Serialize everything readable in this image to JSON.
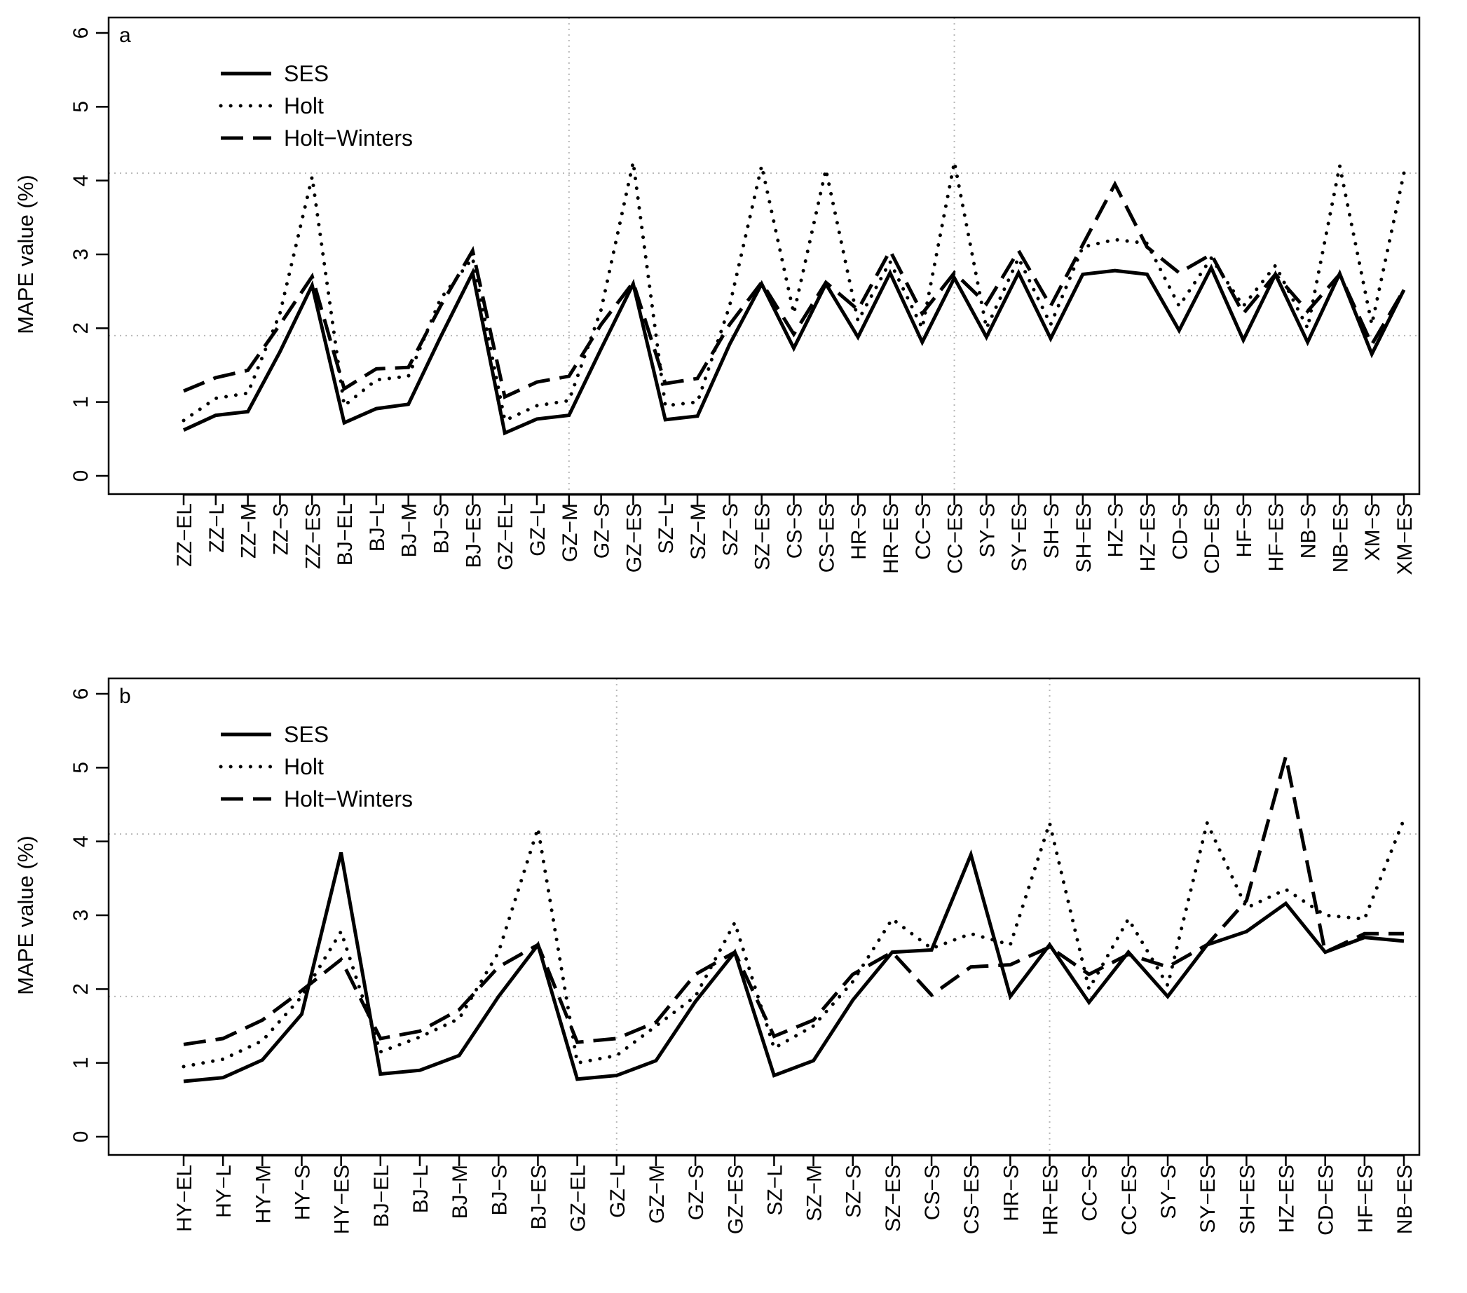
{
  "chart_data": [
    {
      "type": "line",
      "panel_label": "a",
      "ylabel": "MAPE value (%)",
      "xlabel": "",
      "ylim": [
        0,
        6
      ],
      "yticks": [
        0,
        1,
        2,
        3,
        4,
        5,
        6
      ],
      "grid": "dotted lines at y=1.9, y=4.1 and after categories 12 and 24",
      "legend_position": "top-left",
      "categories": [
        "ZZ−EL",
        "ZZ−L",
        "ZZ−M",
        "ZZ−S",
        "ZZ−ES",
        "BJ−EL",
        "BJ−L",
        "BJ−M",
        "BJ−S",
        "BJ−ES",
        "GZ−EL",
        "GZ−L",
        "GZ−M",
        "GZ−S",
        "GZ−ES",
        "SZ−L",
        "SZ−M",
        "SZ−S",
        "SZ−ES",
        "CS−S",
        "CS−ES",
        "HR−S",
        "HR−ES",
        "CC−S",
        "CC−ES",
        "SY−S",
        "SY−ES",
        "SH−S",
        "SH−ES",
        "HZ−S",
        "HZ−ES",
        "CD−S",
        "CD−ES",
        "HF−S",
        "HF−ES",
        "NB−S",
        "NB−ES",
        "XM−S",
        "XM−ES"
      ],
      "series": [
        {
          "name": "SES",
          "style": "solid",
          "values": [
            0.62,
            0.82,
            0.87,
            1.68,
            2.58,
            0.72,
            0.91,
            0.97,
            1.88,
            2.75,
            0.58,
            0.77,
            0.82,
            1.72,
            2.6,
            0.76,
            0.81,
            1.78,
            2.6,
            1.73,
            2.6,
            1.88,
            2.75,
            1.81,
            2.68,
            1.88,
            2.75,
            1.86,
            2.73,
            2.78,
            2.73,
            1.97,
            2.82,
            1.84,
            2.73,
            1.81,
            2.74,
            1.65,
            2.52
          ]
        },
        {
          "name": "Holt",
          "style": "dotted",
          "values": [
            0.75,
            1.05,
            1.12,
            2.2,
            4.05,
            0.95,
            1.3,
            1.35,
            2.4,
            2.95,
            0.75,
            0.95,
            1.02,
            2.25,
            4.25,
            0.95,
            1.0,
            2.3,
            4.2,
            2.2,
            4.15,
            2.1,
            2.9,
            2.0,
            4.25,
            2.0,
            2.95,
            2.05,
            3.1,
            3.2,
            3.15,
            2.3,
            2.95,
            2.3,
            2.85,
            2.0,
            4.2,
            2.05,
            4.1
          ]
        },
        {
          "name": "Holt−Winters",
          "style": "dashed",
          "values": [
            1.15,
            1.33,
            1.43,
            2.05,
            2.7,
            1.18,
            1.45,
            1.47,
            2.3,
            3.05,
            1.07,
            1.27,
            1.35,
            2.05,
            2.62,
            1.25,
            1.32,
            2.05,
            2.62,
            1.92,
            2.62,
            2.25,
            3.05,
            2.2,
            2.75,
            2.33,
            3.05,
            2.3,
            3.13,
            3.95,
            3.1,
            2.75,
            3.0,
            2.2,
            2.73,
            2.23,
            2.73,
            1.78,
            2.52
          ]
        }
      ]
    },
    {
      "type": "line",
      "panel_label": "b",
      "ylabel": "MAPE value (%)",
      "xlabel": "",
      "ylim": [
        0,
        6
      ],
      "yticks": [
        0,
        1,
        2,
        3,
        4,
        5,
        6
      ],
      "grid": "dotted lines at y=1.9, y=4.1 and after categories 11 and 22",
      "legend_position": "top-left",
      "categories": [
        "HY−EL",
        "HY−L",
        "HY−M",
        "HY−S",
        "HY−ES",
        "BJ−EL",
        "BJ−L",
        "BJ−M",
        "BJ−S",
        "BJ−ES",
        "GZ−EL",
        "GZ−L",
        "GZ−M",
        "GZ−S",
        "GZ−ES",
        "SZ−L",
        "SZ−M",
        "SZ−S",
        "SZ−ES",
        "CS−S",
        "CS−ES",
        "HR−S",
        "HR−ES",
        "CC−S",
        "CC−ES",
        "SY−S",
        "SY−ES",
        "SH−ES",
        "HZ−ES",
        "CD−ES",
        "HF−ES",
        "NB−ES"
      ],
      "series": [
        {
          "name": "SES",
          "style": "solid",
          "values": [
            0.75,
            0.8,
            1.04,
            1.66,
            3.85,
            0.85,
            0.9,
            1.1,
            1.9,
            2.6,
            0.78,
            0.83,
            1.03,
            1.83,
            2.5,
            0.83,
            1.03,
            1.85,
            2.5,
            2.53,
            3.82,
            1.9,
            2.6,
            1.82,
            2.5,
            1.9,
            2.6,
            2.78,
            3.16,
            2.5,
            2.7,
            2.65
          ]
        },
        {
          "name": "Holt",
          "style": "dotted",
          "values": [
            0.95,
            1.05,
            1.3,
            1.9,
            2.78,
            1.15,
            1.35,
            1.6,
            2.5,
            4.18,
            1.0,
            1.1,
            1.5,
            1.9,
            2.9,
            1.2,
            1.5,
            2.1,
            2.95,
            2.55,
            2.75,
            2.6,
            4.25,
            2.0,
            2.95,
            2.05,
            4.25,
            3.1,
            3.35,
            3.0,
            2.95,
            4.3
          ]
        },
        {
          "name": "Holt−Winters",
          "style": "dashed",
          "values": [
            1.25,
            1.33,
            1.58,
            1.98,
            2.4,
            1.33,
            1.43,
            1.72,
            2.3,
            2.6,
            1.28,
            1.33,
            1.55,
            2.2,
            2.5,
            1.36,
            1.58,
            2.2,
            2.5,
            1.92,
            2.3,
            2.33,
            2.57,
            2.2,
            2.47,
            2.3,
            2.6,
            3.2,
            5.15,
            2.5,
            2.75,
            2.75
          ]
        }
      ]
    }
  ]
}
